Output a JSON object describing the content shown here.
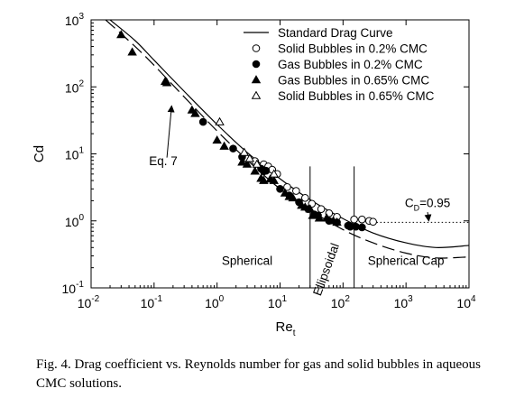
{
  "caption": "Fig. 4. Drag coefficient vs. Reynolds number for gas and solid bubbles in aqueous CMC solutions.",
  "chart_data": {
    "type": "scatter",
    "title": "",
    "xlabel_base": "Re",
    "xlabel_sub": "t",
    "ylabel": "Cd",
    "x_scale": "log",
    "y_scale": "log",
    "xlim": [
      0.01,
      10000
    ],
    "ylim": [
      0.1,
      1000
    ],
    "x_ticks": [
      {
        "value": 0.01,
        "base": "10",
        "exp": "-2"
      },
      {
        "value": 0.1,
        "base": "10",
        "exp": "-1"
      },
      {
        "value": 1,
        "base": "10",
        "exp": "0"
      },
      {
        "value": 10,
        "base": "10",
        "exp": "1"
      },
      {
        "value": 100,
        "base": "10",
        "exp": "2"
      },
      {
        "value": 1000,
        "base": "10",
        "exp": "3"
      },
      {
        "value": 10000,
        "base": "10",
        "exp": "4"
      }
    ],
    "y_ticks": [
      {
        "value": 0.1,
        "base": "10",
        "exp": "-1"
      },
      {
        "value": 1,
        "base": "10",
        "exp": "0"
      },
      {
        "value": 10,
        "base": "10",
        "exp": "1"
      },
      {
        "value": 100,
        "base": "10",
        "exp": "2"
      },
      {
        "value": 1000,
        "base": "10",
        "exp": "3"
      }
    ],
    "grid": false,
    "legend_position": "top-right",
    "lines": [
      {
        "name": "Standard Drag Curve",
        "style": "solid",
        "points": [
          [
            0.02,
            1000
          ],
          [
            0.05,
            490
          ],
          [
            0.1,
            250
          ],
          [
            0.3,
            86
          ],
          [
            1,
            27.5
          ],
          [
            3,
            10.5
          ],
          [
            10,
            4.25
          ],
          [
            30,
            2.07
          ],
          [
            100,
            1.08
          ],
          [
            300,
            0.66
          ],
          [
            1000,
            0.47
          ],
          [
            3000,
            0.4
          ],
          [
            10000,
            0.43
          ]
        ]
      },
      {
        "name": "Eq. 7",
        "style": "dashed",
        "points": [
          [
            0.017,
            1000
          ],
          [
            0.05,
            400
          ],
          [
            0.1,
            210
          ],
          [
            0.3,
            71
          ],
          [
            1,
            22
          ],
          [
            3,
            8.1
          ],
          [
            10,
            3.0
          ],
          [
            30,
            1.45
          ],
          [
            100,
            0.74
          ],
          [
            300,
            0.47
          ],
          [
            1000,
            0.33
          ],
          [
            3000,
            0.28
          ],
          [
            10000,
            0.29
          ]
        ]
      },
      {
        "name": "C_D=0.95 line",
        "style": "dotted",
        "points": [
          [
            300,
            0.95
          ],
          [
            10000,
            0.95
          ]
        ]
      }
    ],
    "series": [
      {
        "name": "Solid Bubbles in 0.2% CMC",
        "marker": "circle-open",
        "points": [
          [
            3,
            8.5
          ],
          [
            4,
            7.8
          ],
          [
            5.5,
            7
          ],
          [
            6.5,
            6.5
          ],
          [
            7.5,
            5.8
          ],
          [
            9,
            5
          ],
          [
            13,
            3.2
          ],
          [
            18,
            2.8
          ],
          [
            25,
            2.2
          ],
          [
            32,
            1.8
          ],
          [
            45,
            1.5
          ],
          [
            60,
            1.3
          ],
          [
            80,
            1.15
          ],
          [
            150,
            1.05
          ],
          [
            200,
            1.05
          ],
          [
            260,
            1.0
          ],
          [
            300,
            0.97
          ]
        ]
      },
      {
        "name": "Gas Bubbles in 0.2% CMC",
        "marker": "circle-filled",
        "points": [
          [
            0.6,
            30
          ],
          [
            1.8,
            12
          ],
          [
            2.5,
            9
          ],
          [
            5,
            6
          ],
          [
            5.5,
            5.5
          ],
          [
            6,
            5.6
          ],
          [
            10,
            3
          ],
          [
            14,
            2.4
          ],
          [
            20,
            1.9
          ],
          [
            28,
            1.5
          ],
          [
            35,
            1.25
          ],
          [
            40,
            1.2
          ],
          [
            60,
            1.0
          ],
          [
            80,
            0.95
          ],
          [
            120,
            0.85
          ],
          [
            130,
            0.82
          ],
          [
            160,
            0.82
          ],
          [
            200,
            0.8
          ]
        ]
      },
      {
        "name": "Gas Bubbles in 0.65% CMC",
        "marker": "triangle-filled",
        "points": [
          [
            0.03,
            600
          ],
          [
            0.045,
            330
          ],
          [
            0.15,
            120
          ],
          [
            0.16,
            115
          ],
          [
            0.4,
            45
          ],
          [
            0.45,
            40
          ],
          [
            1,
            16
          ],
          [
            1.3,
            13
          ],
          [
            2.5,
            7.5
          ],
          [
            3,
            7
          ],
          [
            4,
            5.5
          ],
          [
            5,
            4.3
          ],
          [
            5.5,
            4
          ],
          [
            7,
            4.2
          ],
          [
            8,
            4
          ],
          [
            12,
            2.6
          ],
          [
            14,
            2.3
          ],
          [
            16,
            2.2
          ],
          [
            22,
            1.7
          ],
          [
            25,
            1.6
          ],
          [
            30,
            1.5
          ],
          [
            33,
            1.2
          ],
          [
            42,
            1.1
          ],
          [
            55,
            1.1
          ],
          [
            70,
            1.0
          ],
          [
            80,
            0.95
          ]
        ]
      },
      {
        "name": "Solid Bubbles in 0.65% CMC",
        "marker": "triangle-open",
        "points": [
          [
            1.1,
            30
          ],
          [
            2.7,
            10.5
          ],
          [
            3.3,
            8.5
          ],
          [
            4.3,
            7
          ],
          [
            8,
            5
          ]
        ]
      }
    ],
    "annotations": [
      {
        "text": "Eq. 7",
        "x": 0.14,
        "y": 6.8
      },
      {
        "text": "Spherical",
        "x": 3,
        "y": 0.22
      },
      {
        "text": "Ellipsoidal",
        "x": 62,
        "y": 0.18,
        "rotate": -70
      },
      {
        "text": "Spherical Cap",
        "x": 1000,
        "y": 0.22
      },
      {
        "text_base": "C",
        "text_sub": "D",
        "text_rest": "=0.95",
        "x": 2200,
        "y": 1.6
      }
    ],
    "vertical_lines": [
      30,
      150
    ]
  }
}
